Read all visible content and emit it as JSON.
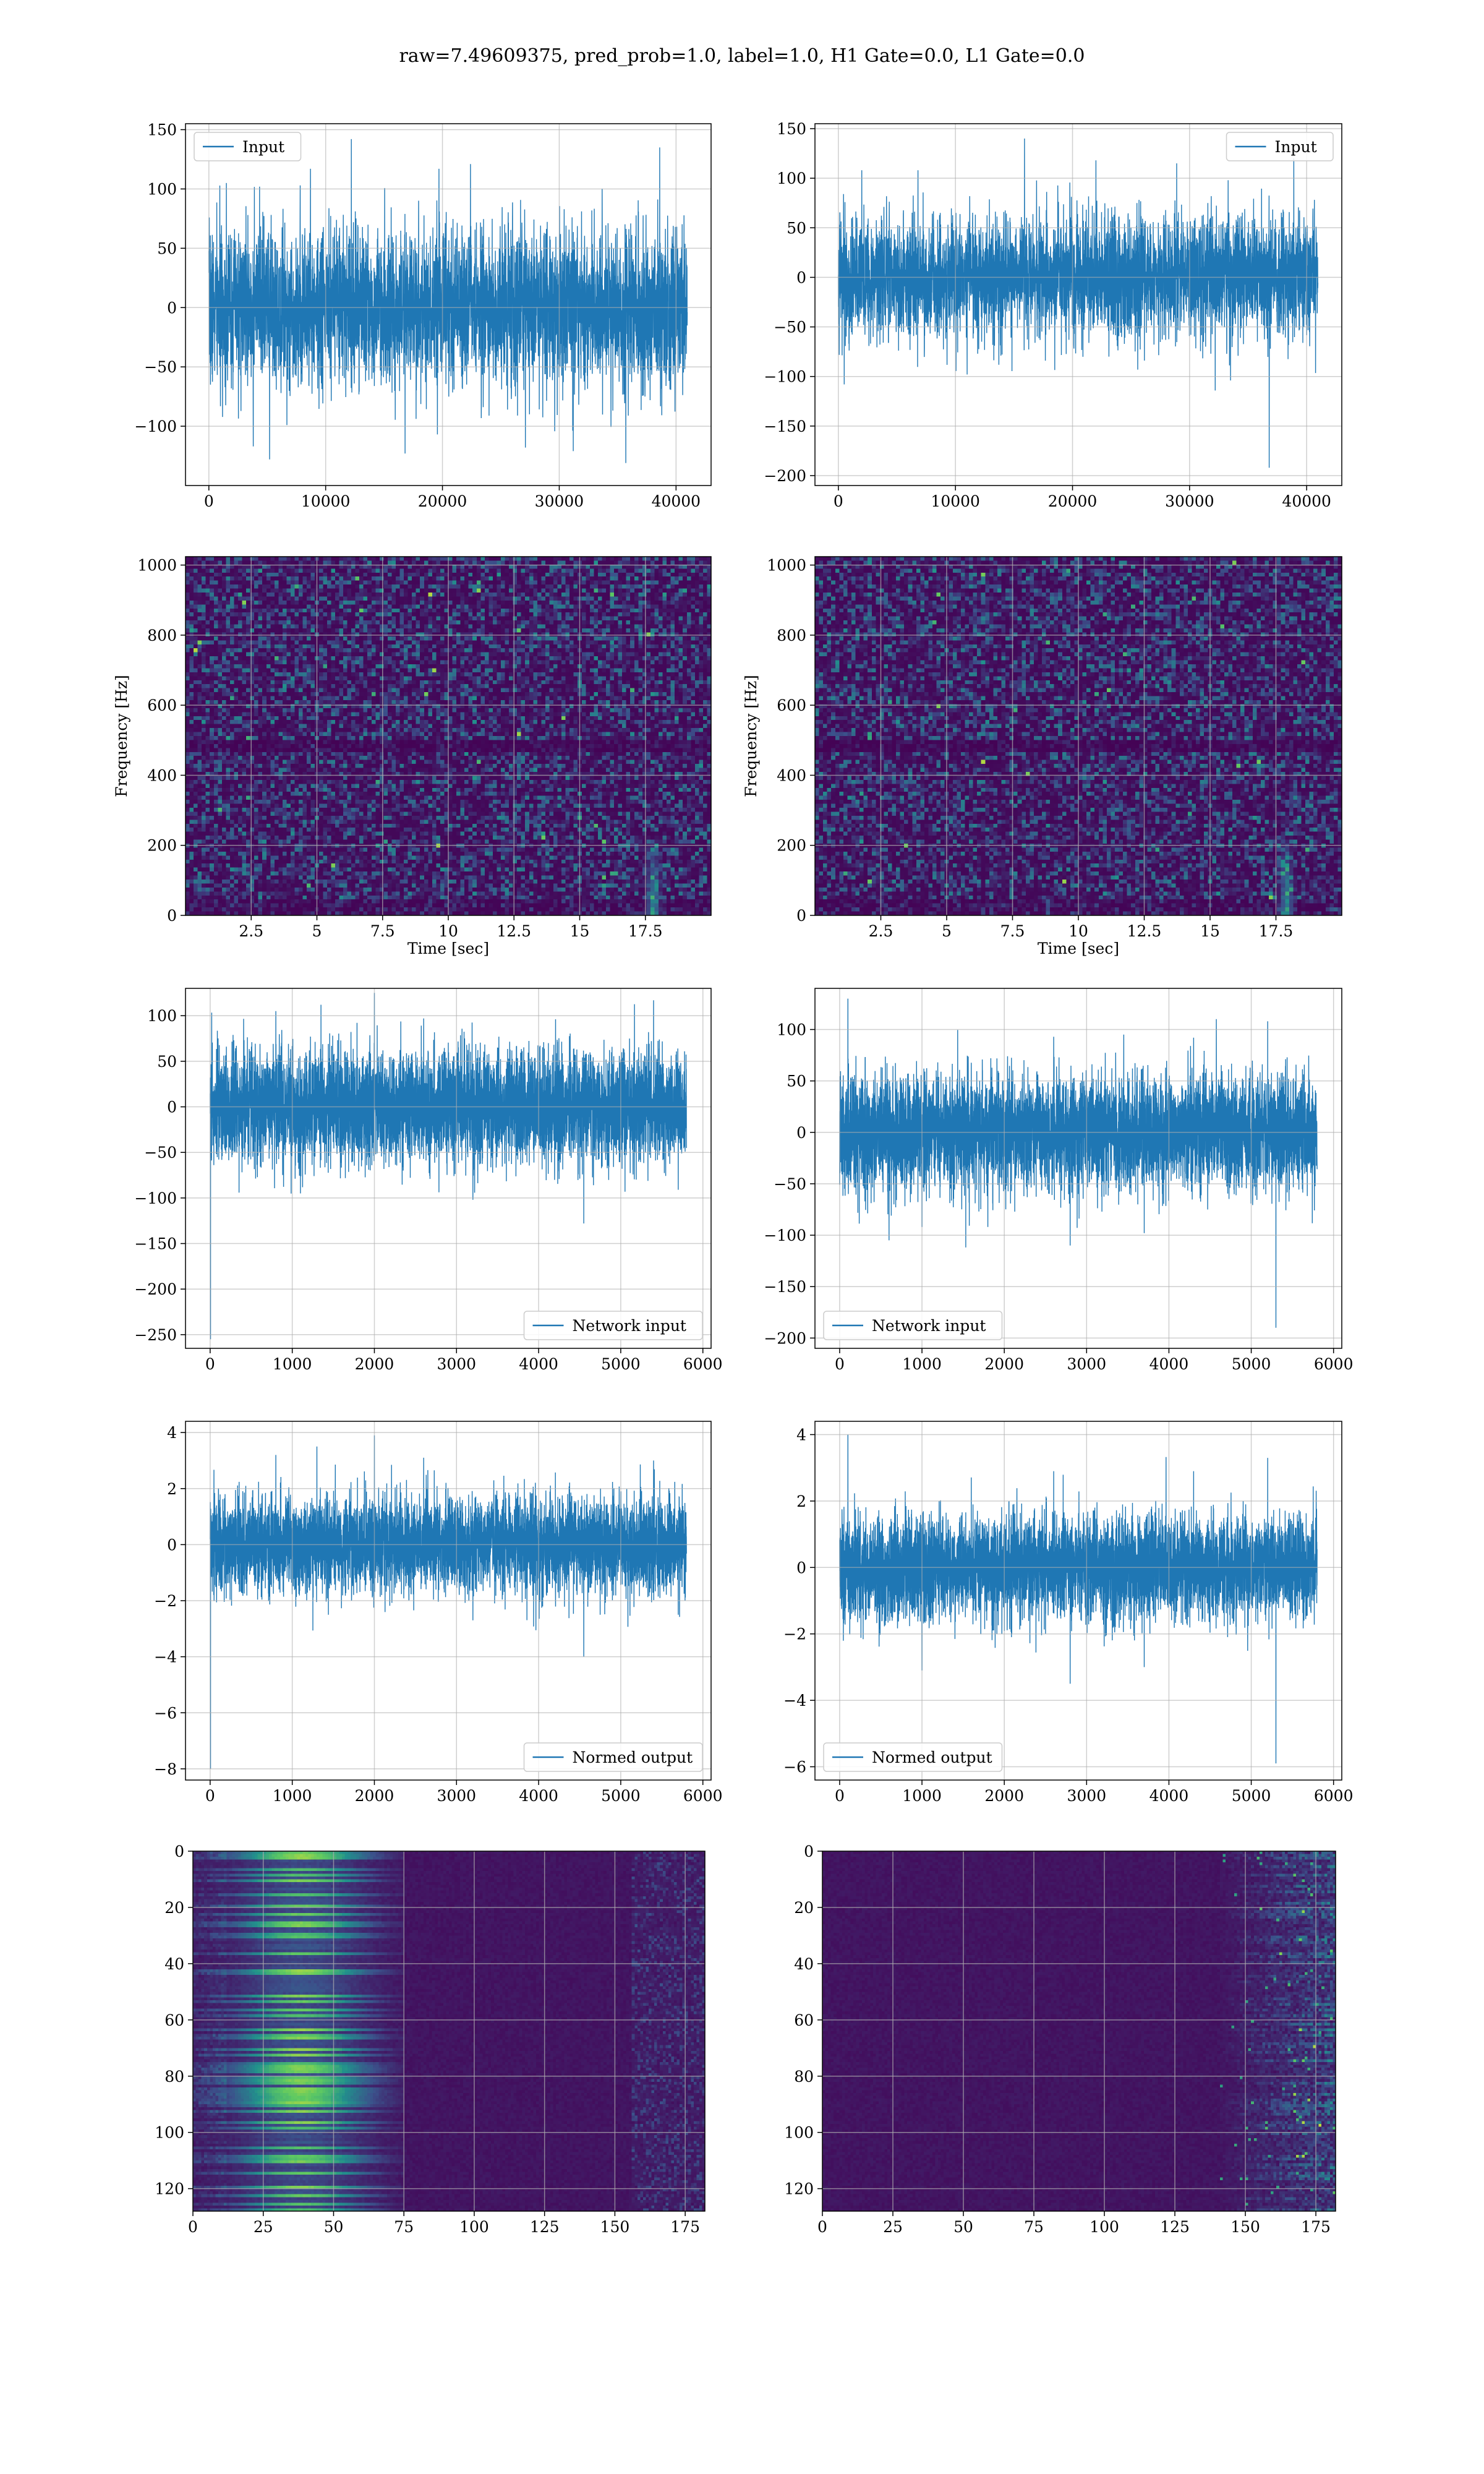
{
  "figure": {
    "suptitle": "raw=7.49609375, pred_prob=1.0, label=1.0, H1 Gate=0.0, L1 Gate=0.0"
  },
  "colors": {
    "series": "#1f77b4",
    "grid": "#b0b0b0",
    "spine": "#000000",
    "colormap": [
      "#440154",
      "#3b528b",
      "#21918c",
      "#5ec962",
      "#fde725"
    ]
  },
  "chart_data": [
    {
      "id": "input-h1",
      "type": "line",
      "subtype": "noise-timeseries",
      "legend": "Input",
      "legend_loc": "upper left",
      "xlim": [
        -2000,
        43000
      ],
      "ylim": [
        -150,
        155
      ],
      "xticks": [
        0,
        10000,
        20000,
        30000,
        40000
      ],
      "yticks": [
        -100,
        -50,
        0,
        50,
        100,
        150
      ],
      "n_points": 40960,
      "band": [
        -60,
        60
      ],
      "spikes": [
        [
          1500,
          105
        ],
        [
          5200,
          -128
        ],
        [
          8700,
          117
        ],
        [
          12200,
          142
        ],
        [
          16800,
          -123
        ],
        [
          22400,
          121
        ],
        [
          27100,
          -118
        ],
        [
          31200,
          -121
        ],
        [
          35700,
          -131
        ],
        [
          38600,
          135
        ],
        [
          3800,
          -117
        ],
        [
          19700,
          117
        ]
      ]
    },
    {
      "id": "input-l1",
      "type": "line",
      "subtype": "noise-timeseries",
      "legend": "Input",
      "legend_loc": "upper right",
      "xlim": [
        -2000,
        43000
      ],
      "ylim": [
        -210,
        155
      ],
      "xticks": [
        0,
        10000,
        20000,
        30000,
        40000
      ],
      "yticks": [
        -200,
        -150,
        -100,
        -50,
        0,
        50,
        100,
        150
      ],
      "n_points": 40960,
      "band": [
        -55,
        55
      ],
      "spikes": [
        [
          15900,
          140
        ],
        [
          36800,
          -192
        ],
        [
          500,
          -108
        ],
        [
          38900,
          120
        ],
        [
          6800,
          108
        ],
        [
          22000,
          118
        ],
        [
          28900,
          115
        ],
        [
          33500,
          -104
        ],
        [
          11000,
          -98
        ],
        [
          2000,
          108
        ]
      ]
    },
    {
      "id": "spec-h1",
      "type": "heatmap",
      "subtype": "spectrogram",
      "xlabel": "Time [sec]",
      "ylabel": "Frequency [Hz]",
      "xlim": [
        0,
        20
      ],
      "ylim": [
        0,
        1024
      ],
      "xticks": [
        2.5,
        5.0,
        7.5,
        10.0,
        12.5,
        15.0,
        17.5
      ],
      "yticks": [
        0,
        200,
        400,
        600,
        800,
        1000
      ],
      "cols": 130,
      "rows": 90,
      "dark_band_hz": [
        465,
        505
      ],
      "chirp_x": 17.8
    },
    {
      "id": "spec-l1",
      "type": "heatmap",
      "subtype": "spectrogram",
      "xlabel": "Time [sec]",
      "ylabel": "Frequency [Hz]",
      "xlim": [
        0,
        20
      ],
      "ylim": [
        0,
        1024
      ],
      "xticks": [
        2.5,
        5.0,
        7.5,
        10.0,
        12.5,
        15.0,
        17.5
      ],
      "yticks": [
        0,
        200,
        400,
        600,
        800,
        1000
      ],
      "cols": 130,
      "rows": 90,
      "dark_band_hz": [
        465,
        505
      ],
      "chirp_x": 17.9
    },
    {
      "id": "network-h1",
      "type": "line",
      "subtype": "noise-timeseries",
      "legend": "Network input",
      "legend_loc": "lower right",
      "xlim": [
        -300,
        6100
      ],
      "ylim": [
        -265,
        130
      ],
      "xticks": [
        0,
        1000,
        2000,
        3000,
        4000,
        5000,
        6000
      ],
      "yticks": [
        -250,
        -200,
        -150,
        -100,
        -50,
        0,
        50,
        100
      ],
      "n_points": 5800,
      "band": [
        -55,
        55
      ],
      "spikes": [
        [
          5,
          -255
        ],
        [
          1350,
          112
        ],
        [
          2000,
          125
        ],
        [
          4550,
          -128
        ],
        [
          5400,
          117
        ],
        [
          800,
          105
        ],
        [
          3200,
          -102
        ],
        [
          2600,
          97
        ],
        [
          5700,
          -91
        ],
        [
          1100,
          -95
        ]
      ]
    },
    {
      "id": "network-l1",
      "type": "line",
      "subtype": "noise-timeseries",
      "legend": "Network input",
      "legend_loc": "lower left",
      "xlim": [
        -300,
        6100
      ],
      "ylim": [
        -210,
        140
      ],
      "xticks": [
        0,
        1000,
        2000,
        3000,
        4000,
        5000,
        6000
      ],
      "yticks": [
        -200,
        -150,
        -100,
        -50,
        0,
        50,
        100
      ],
      "n_points": 5800,
      "band": [
        -50,
        50
      ],
      "spikes": [
        [
          100,
          130
        ],
        [
          5300,
          -190
        ],
        [
          5200,
          108
        ],
        [
          2600,
          93
        ],
        [
          1000,
          -92
        ],
        [
          2800,
          -110
        ],
        [
          4300,
          92
        ],
        [
          3700,
          -98
        ],
        [
          600,
          -105
        ],
        [
          1800,
          -92
        ]
      ]
    },
    {
      "id": "normed-h1",
      "type": "line",
      "subtype": "noise-timeseries",
      "legend": "Normed output",
      "legend_loc": "lower right",
      "xlim": [
        -300,
        6100
      ],
      "ylim": [
        -8.4,
        4.4
      ],
      "xticks": [
        0,
        1000,
        2000,
        3000,
        4000,
        5000,
        6000
      ],
      "yticks": [
        -8,
        -6,
        -4,
        -2,
        0,
        2,
        4
      ],
      "n_points": 5800,
      "band": [
        -1.5,
        1.5
      ],
      "spikes": [
        [
          5,
          -8
        ],
        [
          2000,
          3.9
        ],
        [
          1300,
          3.5
        ],
        [
          5400,
          3.0
        ],
        [
          4550,
          -4.0
        ],
        [
          800,
          3.2
        ],
        [
          3200,
          -2.7
        ],
        [
          2600,
          3.1
        ],
        [
          5700,
          -2.5
        ]
      ]
    },
    {
      "id": "normed-l1",
      "type": "line",
      "subtype": "noise-timeseries",
      "legend": "Normed output",
      "legend_loc": "lower left",
      "xlim": [
        -300,
        6100
      ],
      "ylim": [
        -6.4,
        4.4
      ],
      "xticks": [
        0,
        1000,
        2000,
        3000,
        4000,
        5000,
        6000
      ],
      "yticks": [
        -6,
        -4,
        -2,
        0,
        2,
        4
      ],
      "n_points": 5800,
      "band": [
        -1.4,
        1.4
      ],
      "spikes": [
        [
          100,
          4.0
        ],
        [
          5300,
          -5.9
        ],
        [
          5200,
          3.3
        ],
        [
          2600,
          2.9
        ],
        [
          1000,
          -3.1
        ],
        [
          2800,
          -3.5
        ],
        [
          4300,
          2.9
        ],
        [
          3700,
          -3.0
        ]
      ]
    },
    {
      "id": "feature-h1",
      "type": "heatmap",
      "subtype": "feature-map",
      "xlim": [
        0,
        182
      ],
      "ylim": [
        128,
        0
      ],
      "xticks": [
        0,
        25,
        50,
        75,
        100,
        125,
        150,
        175
      ],
      "yticks": [
        0,
        20,
        40,
        60,
        80,
        100,
        120
      ],
      "cols": 182,
      "rows": 128,
      "hot_range": [
        0,
        75
      ],
      "edge_range": [
        155,
        182
      ]
    },
    {
      "id": "feature-l1",
      "type": "heatmap",
      "subtype": "feature-map",
      "xlim": [
        0,
        182
      ],
      "ylim": [
        128,
        0
      ],
      "xticks": [
        0,
        25,
        50,
        75,
        100,
        125,
        150,
        175
      ],
      "yticks": [
        0,
        20,
        40,
        60,
        80,
        100,
        120
      ],
      "cols": 182,
      "rows": 128,
      "hot_range": [
        140,
        182
      ],
      "edge_range": [
        140,
        182
      ]
    }
  ]
}
